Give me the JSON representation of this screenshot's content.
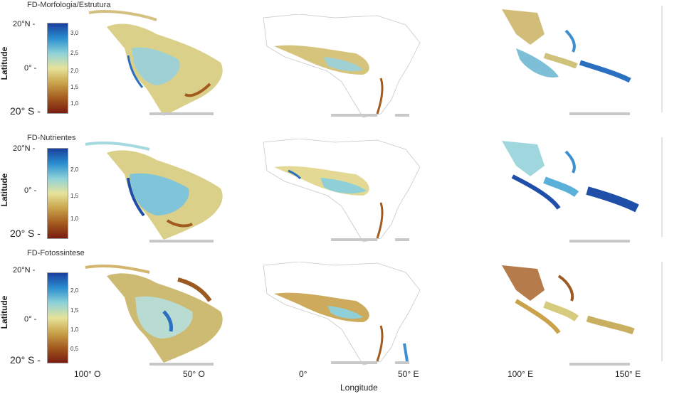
{
  "rows": [
    {
      "title": "FD-Morfologia/Estrutura",
      "ylabel": "Latitude",
      "yticks": [
        "20°N -",
        "0° -",
        "20° S -"
      ],
      "colorbar": {
        "ticks": [
          "3,0",
          "2,5",
          "2,0",
          "1,5",
          "1,0"
        ],
        "stops": [
          "#1a3f9e",
          "#2a8fd0",
          "#8fd2d8",
          "#e6e39a",
          "#c9a24a",
          "#a35a1e",
          "#7b1c12"
        ]
      }
    },
    {
      "title": "FD-Nutrientes",
      "ylabel": "Latitude",
      "yticks": [
        "20°N -",
        "0° -",
        "20° S -"
      ],
      "colorbar": {
        "ticks": [
          "2,0",
          "1,5",
          "1,0"
        ],
        "stops": [
          "#1a3f9e",
          "#2a8fd0",
          "#8fd2d8",
          "#e6e39a",
          "#c9a24a",
          "#a35a1e",
          "#7b1c12"
        ]
      }
    },
    {
      "title": "FD-Fotossintese",
      "ylabel": "Latitude",
      "yticks": [
        "20°N -",
        "0° -",
        "20° S -"
      ],
      "colorbar": {
        "ticks": [
          "2,0",
          "1,5",
          "1,0",
          "0,5"
        ],
        "stops": [
          "#1a3f9e",
          "#2a8fd0",
          "#8fd2d8",
          "#e6e39a",
          "#c9a24a",
          "#a35a1e",
          "#7b1c12"
        ]
      }
    }
  ],
  "xticks": [
    "100° O",
    "50° O",
    "0°",
    "50° E",
    "100° E",
    "150° E"
  ],
  "xlabel": "Longitude",
  "palette": {
    "blue_dark": "#1f4fa8",
    "blue": "#3c9fd6",
    "cyan": "#8fd3da",
    "yellow": "#e3dc8e",
    "tan": "#c9a24a",
    "brown": "#9c5a23",
    "border": "#bfbfbf",
    "scalebar": "#c8c8c8"
  }
}
